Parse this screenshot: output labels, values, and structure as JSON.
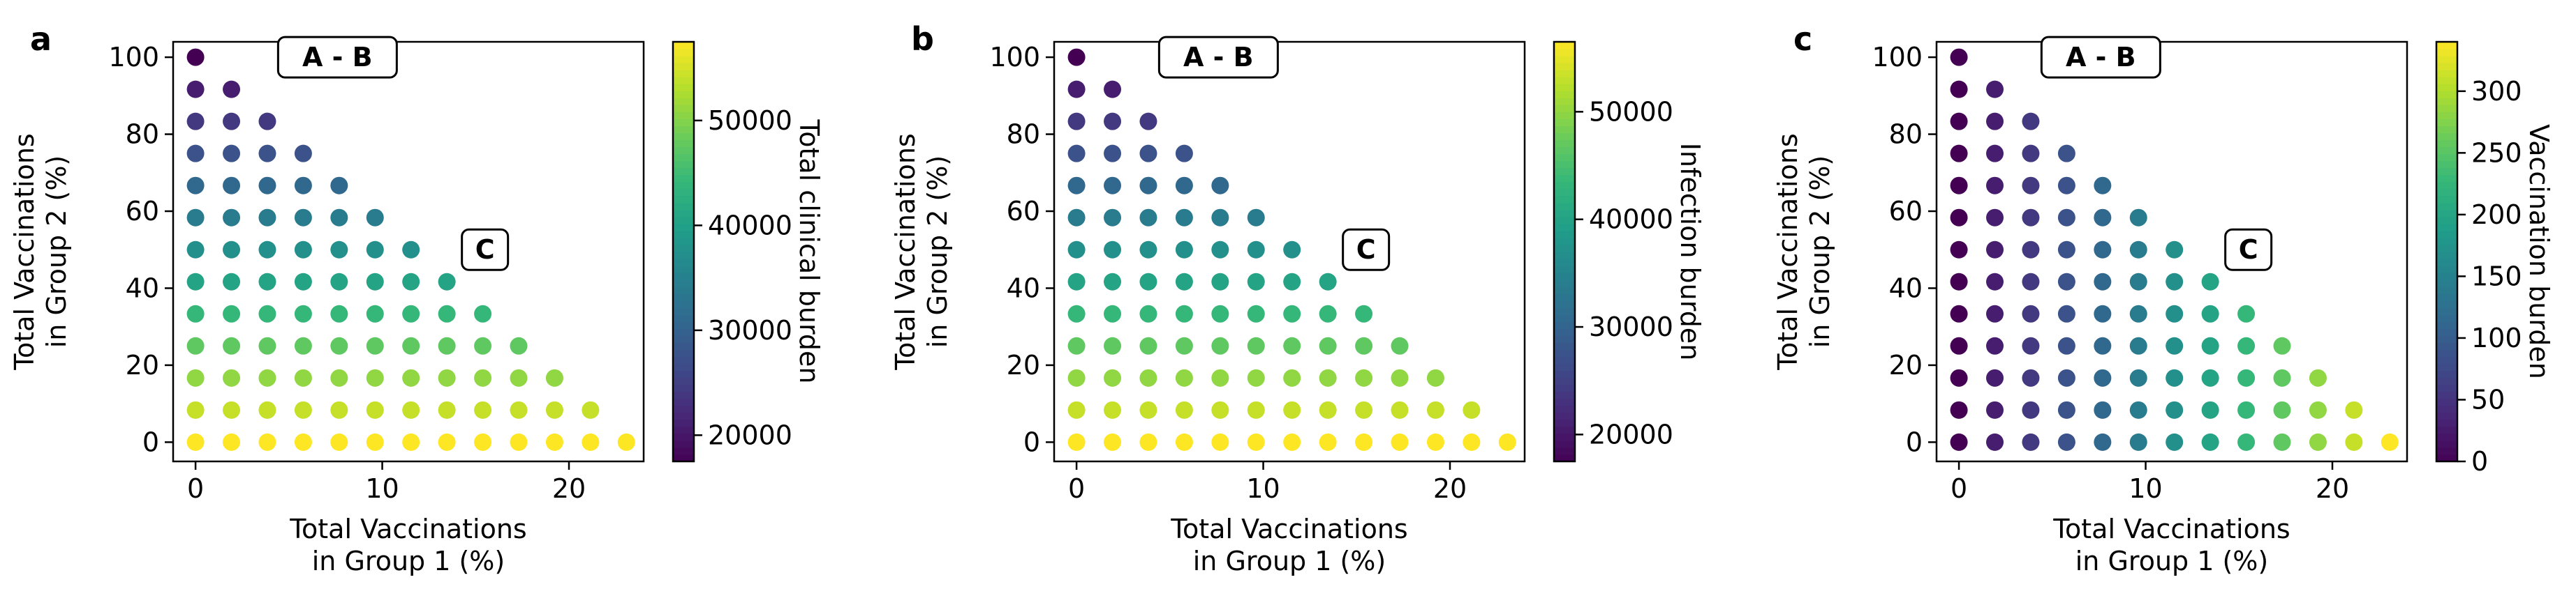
{
  "chart_data": [
    {
      "type": "scatter",
      "panel_label": "a",
      "xlabel_lines": [
        "Total Vaccinations",
        "in Group 1 (%)"
      ],
      "ylabel_lines": [
        "Total Vaccinations",
        "in Group 2 (%)"
      ],
      "colorbar_label": "Total clinical burden",
      "xlim": [
        -1.2,
        24
      ],
      "ylim": [
        -5,
        104
      ],
      "xticks": [
        0,
        10,
        20
      ],
      "yticks": [
        0,
        20,
        40,
        60,
        80,
        100
      ],
      "colorbar_range": [
        17500,
        57500
      ],
      "colorbar_ticks": [
        20000,
        30000,
        40000,
        50000
      ],
      "grid": false,
      "colormap": "viridis",
      "color_by": "group2",
      "annotations": [
        {
          "text": "A - B",
          "x": 7.6,
          "y": 100
        },
        {
          "text": "C",
          "x": 15.5,
          "y": 50
        }
      ]
    },
    {
      "type": "scatter",
      "panel_label": "b",
      "xlabel_lines": [
        "Total Vaccinations",
        "in Group 1 (%)"
      ],
      "ylabel_lines": [
        "Total Vaccinations",
        "in Group 2 (%)"
      ],
      "colorbar_label": "Infection burden",
      "xlim": [
        -1.2,
        24
      ],
      "ylim": [
        -5,
        104
      ],
      "xticks": [
        0,
        10,
        20
      ],
      "yticks": [
        0,
        20,
        40,
        60,
        80,
        100
      ],
      "colorbar_range": [
        17500,
        56500
      ],
      "colorbar_ticks": [
        20000,
        30000,
        40000,
        50000
      ],
      "grid": false,
      "colormap": "viridis",
      "color_by": "group2",
      "annotations": [
        {
          "text": "A - B",
          "x": 7.6,
          "y": 100
        },
        {
          "text": "C",
          "x": 15.5,
          "y": 50
        }
      ]
    },
    {
      "type": "scatter",
      "panel_label": "c",
      "xlabel_lines": [
        "Total Vaccinations",
        "in Group 1 (%)"
      ],
      "ylabel_lines": [
        "Total Vaccinations",
        "in Group 2 (%)"
      ],
      "colorbar_label": "Vaccination burden",
      "xlim": [
        -1.2,
        24
      ],
      "ylim": [
        -5,
        104
      ],
      "xticks": [
        0,
        10,
        20
      ],
      "yticks": [
        0,
        20,
        40,
        60,
        80,
        100
      ],
      "colorbar_range": [
        0,
        340
      ],
      "colorbar_ticks": [
        0,
        50,
        100,
        150,
        200,
        250,
        300
      ],
      "grid": false,
      "colormap": "viridis",
      "color_by": "group1",
      "annotations": [
        {
          "text": "A - B",
          "x": 7.6,
          "y": 100
        },
        {
          "text": "C",
          "x": 15.5,
          "y": 50
        }
      ]
    }
  ]
}
